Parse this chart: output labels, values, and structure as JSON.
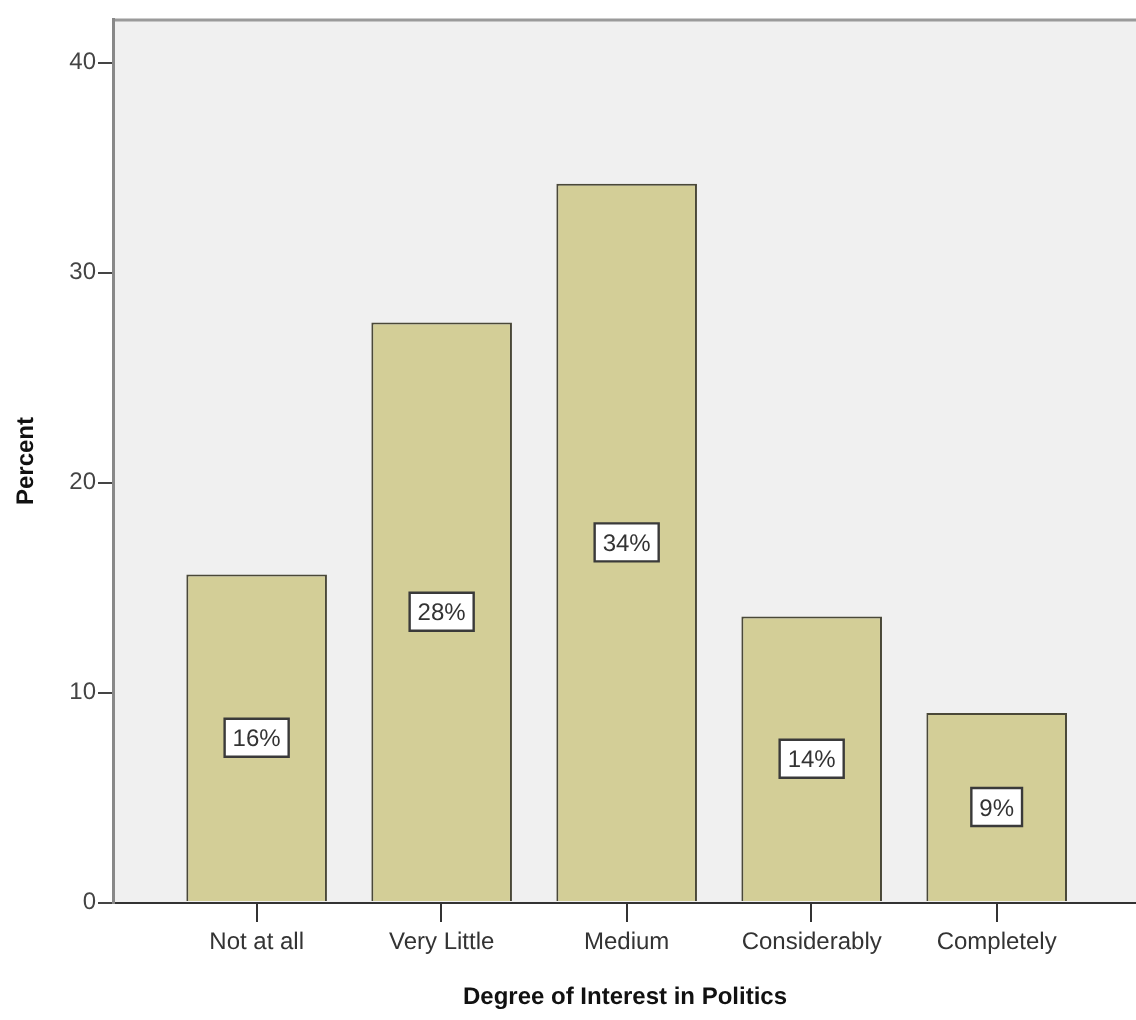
{
  "chart_data": {
    "type": "bar",
    "xlabel": "Degree of Interest in Politics",
    "ylabel": "Percent",
    "categories": [
      "Not at all",
      "Very Little",
      "Medium",
      "Considerably",
      "Completely"
    ],
    "values": [
      15.6,
      27.6,
      34.2,
      13.6,
      9.0
    ],
    "value_labels": [
      "16%",
      "28%",
      "34%",
      "14%",
      "9%"
    ],
    "color": "#d3ce97",
    "ylim": [
      0,
      42
    ],
    "yticks": [
      0,
      10,
      20,
      30,
      40
    ]
  }
}
